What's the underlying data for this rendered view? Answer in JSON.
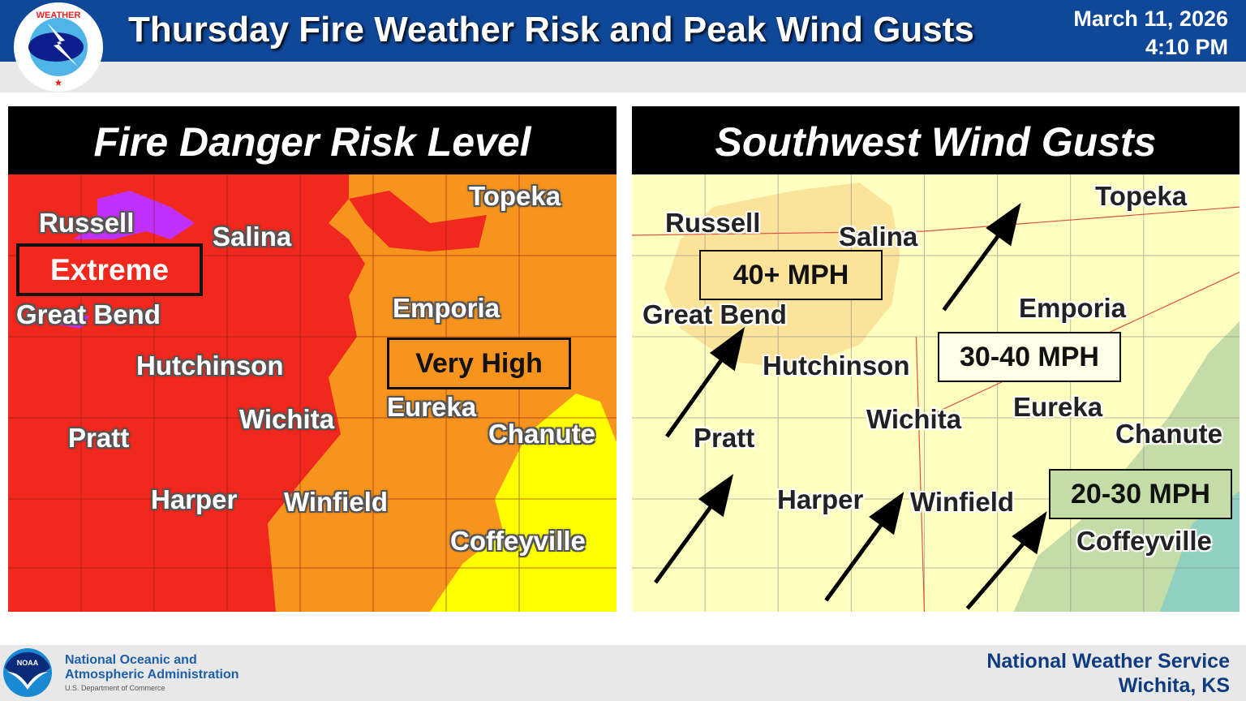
{
  "header": {
    "title": "Thursday Fire Weather Risk and Peak Wind Gusts",
    "date": "March 11, 2026",
    "time": "4:10 PM",
    "logo_text": "NATIONAL WEATHER SERVICE"
  },
  "left_panel": {
    "title": "Fire Danger Risk Level",
    "labels": {
      "extreme": "Extreme",
      "very_high": "Very High"
    },
    "colors": {
      "extreme": "#f0281e",
      "very_high": "#f7941d",
      "high": "#ffff00",
      "critical": "#c030ff"
    }
  },
  "right_panel": {
    "title": "Southwest Wind Gusts",
    "labels": {
      "g40": "40+ MPH",
      "g3040": "30-40 MPH",
      "g2030": "20-30 MPH"
    },
    "colors": {
      "g40": "#fbe39a",
      "g3040": "#ffffc0",
      "g2030": "#c3dca8"
    }
  },
  "cities": [
    "Russell",
    "Salina",
    "Great Bend",
    "Hutchinson",
    "Wichita",
    "Pratt",
    "Harper",
    "Winfield",
    "Topeka",
    "Emporia",
    "Eureka",
    "Chanute",
    "Coffeyville"
  ],
  "footer": {
    "noaa_line1": "National Oceanic and",
    "noaa_line2": "Atmospheric Administration",
    "noaa_sub": "U.S. Department of Commerce",
    "noaa_logo": "NOAA",
    "office_line1": "National Weather Service",
    "office_line2": "Wichita, KS"
  }
}
